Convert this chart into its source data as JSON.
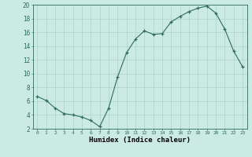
{
  "x": [
    0,
    1,
    2,
    3,
    4,
    5,
    6,
    7,
    8,
    9,
    10,
    11,
    12,
    13,
    14,
    15,
    16,
    17,
    18,
    19,
    20,
    21,
    22,
    23
  ],
  "y": [
    6.7,
    6.1,
    5.0,
    4.2,
    4.0,
    3.7,
    3.2,
    2.3,
    5.0,
    9.5,
    13.0,
    15.0,
    16.2,
    15.7,
    15.8,
    17.5,
    18.3,
    19.0,
    19.5,
    19.8,
    18.8,
    16.5,
    13.3,
    11.0
  ],
  "line_color": "#2e6b5e",
  "marker_color": "#2e6b5e",
  "bg_color": "#cceae4",
  "grid_color": "#aad4cc",
  "xlabel": "Humidex (Indice chaleur)",
  "ylim": [
    2,
    20
  ],
  "xlim": [
    -0.5,
    23.5
  ],
  "yticks": [
    2,
    4,
    6,
    8,
    10,
    12,
    14,
    16,
    18,
    20
  ],
  "xticks": [
    0,
    1,
    2,
    3,
    4,
    5,
    6,
    7,
    8,
    9,
    10,
    11,
    12,
    13,
    14,
    15,
    16,
    17,
    18,
    19,
    20,
    21,
    22,
    23
  ]
}
